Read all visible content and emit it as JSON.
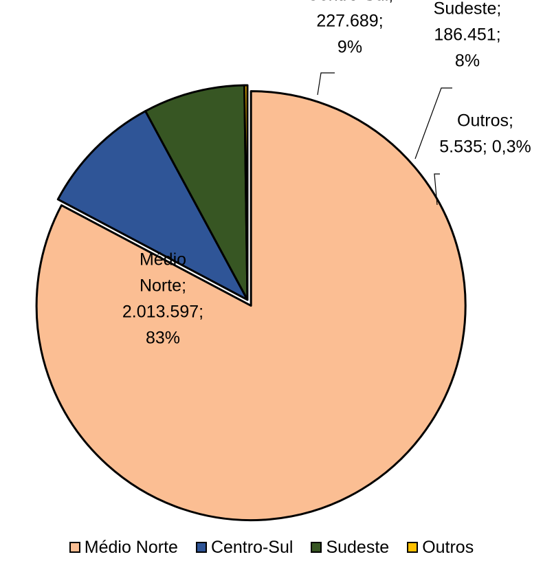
{
  "chart_data": {
    "type": "pie",
    "title": "",
    "slices": [
      {
        "name": "Médio Norte",
        "value": 2013597,
        "label_lines": [
          "Médio",
          "Norte;",
          "2.013.597;",
          "83%"
        ],
        "color": "#FBBE93"
      },
      {
        "name": "Centro-Sul",
        "value": 227689,
        "label_lines": [
          "Centro-Sul;",
          "227.689;",
          "9%"
        ],
        "color": "#2F5597"
      },
      {
        "name": "Sudeste",
        "value": 186451,
        "label_lines": [
          "Sudeste;",
          "186.451;",
          "8%"
        ],
        "color": "#375623"
      },
      {
        "name": "Outros",
        "value": 5535,
        "label_lines": [
          "Outros;",
          "5.535; 0,3%"
        ],
        "color": "#FFC000"
      }
    ],
    "legend": {
      "position": "bottom",
      "entries": [
        "Médio Norte",
        "Centro-Sul",
        "Sudeste",
        "Outros"
      ]
    },
    "start_angle_deg": 0,
    "direction": "clockwise"
  }
}
